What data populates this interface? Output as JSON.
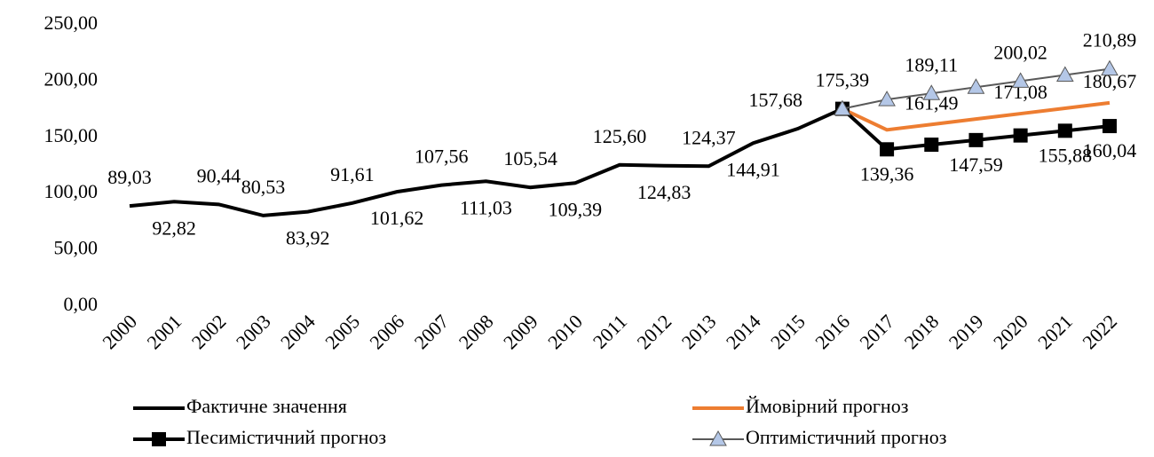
{
  "chart_data": {
    "type": "line",
    "categories": [
      "2000",
      "2001",
      "2002",
      "2003",
      "2004",
      "2005",
      "2006",
      "2007",
      "2008",
      "2009",
      "2010",
      "2011",
      "2012",
      "2013",
      "2014",
      "2015",
      "2016",
      "2017",
      "2018",
      "2019",
      "2020",
      "2021",
      "2022"
    ],
    "ylim": [
      0,
      250
    ],
    "yticks": [
      {
        "value": 0,
        "label": "0,00"
      },
      {
        "value": 50,
        "label": "50,00"
      },
      {
        "value": 100,
        "label": "100,00"
      },
      {
        "value": 150,
        "label": "150,00"
      },
      {
        "value": 200,
        "label": "200,00"
      },
      {
        "value": 250,
        "label": "250,00"
      }
    ],
    "series": [
      {
        "name": "Фактичне значення",
        "color": "#000000",
        "marker": "none",
        "values": [
          89.03,
          92.82,
          90.44,
          80.53,
          83.92,
          91.61,
          101.62,
          107.56,
          111.03,
          105.54,
          109.39,
          125.6,
          124.83,
          124.37,
          144.91,
          157.68,
          175.39,
          null,
          null,
          null,
          null,
          null,
          null
        ],
        "value_labels": [
          "89,03",
          "92,82",
          "90,44",
          "80,53",
          "83,92",
          "91,61",
          "101,62",
          "107,56",
          "111,03",
          "105,54",
          "109,39",
          "125,60",
          "124,83",
          "124,37",
          "144,91",
          "157,68",
          "175,39",
          null,
          null,
          null,
          null,
          null,
          null
        ]
      },
      {
        "name": "Ймовірний прогноз",
        "color": "#ed7d31",
        "marker": "none",
        "values": [
          null,
          null,
          null,
          null,
          null,
          null,
          null,
          null,
          null,
          null,
          null,
          null,
          null,
          null,
          null,
          null,
          175.39,
          156.7,
          161.49,
          166.29,
          171.08,
          175.88,
          180.67
        ],
        "value_labels": [
          null,
          null,
          null,
          null,
          null,
          null,
          null,
          null,
          null,
          null,
          null,
          null,
          null,
          null,
          null,
          null,
          null,
          null,
          "161,49",
          null,
          "171,08",
          null,
          "180,67"
        ]
      },
      {
        "name": "Песимістичний прогноз",
        "color": "#000000",
        "marker": "square",
        "values": [
          null,
          null,
          null,
          null,
          null,
          null,
          null,
          null,
          null,
          null,
          null,
          null,
          null,
          null,
          null,
          null,
          175.39,
          139.36,
          143.5,
          147.59,
          151.7,
          155.88,
          160.04
        ],
        "value_labels": [
          null,
          null,
          null,
          null,
          null,
          null,
          null,
          null,
          null,
          null,
          null,
          null,
          null,
          null,
          null,
          null,
          null,
          "139,36",
          null,
          "147,59",
          null,
          "155,88",
          "160,04"
        ]
      },
      {
        "name": "Оптимістичний прогноз",
        "color": "#595959",
        "marker": "triangle",
        "values": [
          null,
          null,
          null,
          null,
          null,
          null,
          null,
          null,
          null,
          null,
          null,
          null,
          null,
          null,
          null,
          null,
          175.39,
          183.66,
          189.11,
          194.56,
          200.02,
          205.45,
          210.89
        ],
        "value_labels": [
          null,
          null,
          null,
          null,
          null,
          null,
          null,
          null,
          null,
          null,
          null,
          null,
          null,
          null,
          null,
          null,
          null,
          null,
          "189,11",
          null,
          "200,02",
          null,
          "210,89"
        ]
      }
    ]
  }
}
